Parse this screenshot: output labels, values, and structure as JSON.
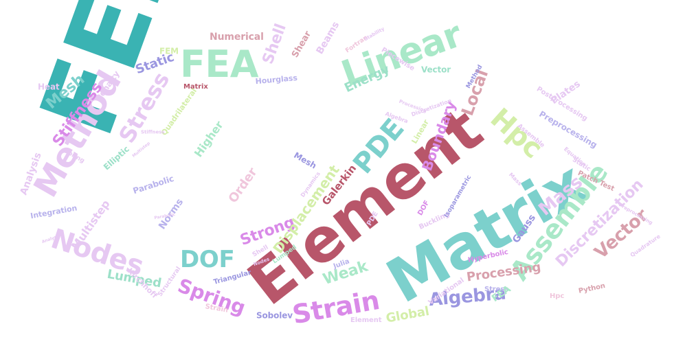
{
  "palette": {
    "teal": "#3ab3b3",
    "crimson": "#b8566a",
    "mint": "#a9e8c8",
    "lilac": "#e6c8f2",
    "magenta": "#d98ae8",
    "periwinkle": "#9a96e0",
    "aqua": "#7cd0cc",
    "rose": "#d8a0ac",
    "lime": "#d3eea8",
    "pink": "#f0c6dc",
    "seafoam": "#9ce0c8",
    "grey": "#c7c7d7",
    "lavender": "#b8b2ec"
  },
  "words": [
    {
      "text": "FEM",
      "color": "#3ab3b3"
    },
    {
      "text": "Element",
      "color": "#b8566a"
    },
    {
      "text": "Matrix",
      "color": "#7cd0cc"
    },
    {
      "text": "FEA",
      "color": "#a9e8c8"
    },
    {
      "text": "Linear",
      "color": "#a9e8c8"
    },
    {
      "text": "Method",
      "color": "#e6c8f2"
    },
    {
      "text": "Analysis",
      "color": "#e6c8f2"
    },
    {
      "text": "Nodes",
      "color": "#e6c8f2"
    },
    {
      "text": "Hpc",
      "color": "#d3eea8"
    },
    {
      "text": "PDE",
      "color": "#7cd0cc"
    },
    {
      "text": "Assemble",
      "color": "#a9e8c8"
    },
    {
      "text": "Strain",
      "color": "#d98ae8"
    },
    {
      "text": "Algebra",
      "color": "#9a96e0"
    },
    {
      "text": "Spring",
      "color": "#d98ae8"
    },
    {
      "text": "DOF",
      "color": "#7cd0cc"
    },
    {
      "text": "Stress",
      "color": "#e6c8f2"
    },
    {
      "text": "Strong",
      "color": "#d98ae8"
    },
    {
      "text": "Weak",
      "color": "#a9e8c8"
    },
    {
      "text": "Vector",
      "color": "#d8a0ac"
    },
    {
      "text": "Displacement",
      "color": "#d3eea8"
    },
    {
      "text": "Boundary",
      "color": "#d98ae8"
    },
    {
      "text": "Local",
      "color": "#d8a0ac"
    },
    {
      "text": "Mass",
      "color": "#e6c8f2"
    },
    {
      "text": "Discretization",
      "color": "#e6c8f2"
    },
    {
      "text": "Lumped",
      "color": "#9ce0c8"
    },
    {
      "text": "Global",
      "color": "#d3eea8"
    },
    {
      "text": "Processing",
      "color": "#d8a0ac"
    },
    {
      "text": "Order",
      "color": "#f0c6dc"
    },
    {
      "text": "Stiffness",
      "color": "#d98ae8"
    },
    {
      "text": "Mesh",
      "color": "#7cd0cc"
    },
    {
      "text": "Shell",
      "color": "#e6c8f2"
    },
    {
      "text": "Galerkin",
      "color": "#b8566a"
    },
    {
      "text": "Multistep",
      "color": "#e6c8f2"
    },
    {
      "text": "Static",
      "color": "#9a96e0"
    },
    {
      "text": "Energy",
      "color": "#9ce0c8"
    },
    {
      "text": "Higher",
      "color": "#a9e8c8"
    },
    {
      "text": "Gauss",
      "color": "#9a96e0"
    },
    {
      "text": "Norms",
      "color": "#b8b2ec"
    },
    {
      "text": "Numerical",
      "color": "#d8a0ac"
    },
    {
      "text": "Beams",
      "color": "#e6c8f2"
    },
    {
      "text": "Plates",
      "color": "#e6c8f2"
    },
    {
      "text": "Preprocessing",
      "color": "#b8b2ec"
    },
    {
      "text": "Postprocessing",
      "color": "#e6c8f2"
    },
    {
      "text": "Vector",
      "color": "#9ce0c8"
    },
    {
      "text": "Shear",
      "color": "#d8a0ac"
    },
    {
      "text": "Heat",
      "color": "#e6c8f2"
    },
    {
      "text": "Penalty",
      "color": "#e6c8f2"
    },
    {
      "text": "Elliptic",
      "color": "#9ce0c8"
    },
    {
      "text": "Parabolic",
      "color": "#b8b2ec"
    },
    {
      "text": "Integration",
      "color": "#b8b2ec"
    },
    {
      "text": "Kirchhoff",
      "color": "#e6c8f2"
    },
    {
      "text": "Triangular",
      "color": "#9a96e0"
    },
    {
      "text": "Sobolev",
      "color": "#9a96e0"
    },
    {
      "text": "Julia",
      "color": "#b8b2ec"
    },
    {
      "text": "Hyperbolic",
      "color": "#d98ae8"
    },
    {
      "text": "Variational",
      "color": "#e6c8f2"
    },
    {
      "text": "Stress",
      "color": "#b8b2ec"
    },
    {
      "text": "FEA",
      "color": "#a9e8c8"
    },
    {
      "text": "Hpc",
      "color": "#f0c6dc"
    },
    {
      "text": "Python",
      "color": "#d8a0ac"
    },
    {
      "text": "Patch Test",
      "color": "#d8a0ac"
    },
    {
      "text": "Static",
      "color": "#e6c8f2"
    },
    {
      "text": "Equation",
      "color": "#e6c8f2"
    },
    {
      "text": "Hourglass",
      "color": "#b8b2ec"
    },
    {
      "text": "Quadrilateral",
      "color": "#d3eea8"
    },
    {
      "text": "Matrix",
      "color": "#b8566a"
    },
    {
      "text": "Fortran",
      "color": "#f0c6dc"
    },
    {
      "text": "Stability",
      "color": "#e6c8f2"
    },
    {
      "text": "Piecewise",
      "color": "#e6c8f2"
    },
    {
      "text": "Method",
      "color": "#9a96e0"
    },
    {
      "text": "FEM",
      "color": "#d3eea8"
    },
    {
      "text": "Mesh",
      "color": "#9a96e0"
    },
    {
      "text": "Dynamics",
      "color": "#e6c8f2"
    },
    {
      "text": "Buckling",
      "color": "#e6c8f2"
    },
    {
      "text": "DOF",
      "color": "#d98ae8"
    },
    {
      "text": "Linear",
      "color": "#d3eea8"
    },
    {
      "text": "Spring",
      "color": "#e6c8f2"
    },
    {
      "text": "Structural",
      "color": "#e6c8f2"
    },
    {
      "text": "Strain",
      "color": "#f0c6dc"
    },
    {
      "text": "Element",
      "color": "#e6c8f2"
    },
    {
      "text": "Isoparametric",
      "color": "#9a96e0"
    },
    {
      "text": "Quadrature",
      "color": "#e6c8f2"
    },
    {
      "text": "Assemble",
      "color": "#e6c8f2"
    },
    {
      "text": "Discretization",
      "color": "#e6c8f2"
    },
    {
      "text": "Processing",
      "color": "#e6c8f2"
    },
    {
      "text": "Algebra",
      "color": "#e6c8f2"
    },
    {
      "text": "Lumped",
      "color": "#a9e8c8"
    },
    {
      "text": "Nodes",
      "color": "#e6c8f2"
    },
    {
      "text": "PDE",
      "color": "#e6c8f2"
    },
    {
      "text": "Shell",
      "color": "#e6c8f2"
    },
    {
      "text": "Mass",
      "color": "#e6c8f2"
    },
    {
      "text": "Preprocessing",
      "color": "#e6c8f2"
    },
    {
      "text": "Stiffness",
      "color": "#e6c8f2"
    },
    {
      "text": "Analysis",
      "color": "#e6c8f2"
    },
    {
      "text": "Parabolic",
      "color": "#e6c8f2"
    },
    {
      "text": "Multistep",
      "color": "#e6c8f2"
    }
  ]
}
